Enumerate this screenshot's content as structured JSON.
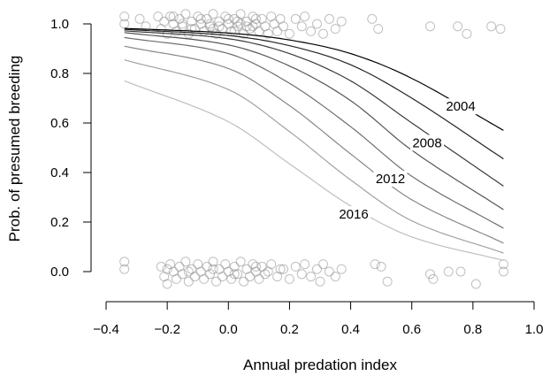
{
  "chart_data": {
    "type": "scatter",
    "xlabel": "Annual predation index",
    "ylabel": "Prob. of presumed breeding",
    "xlim": [
      -0.4,
      1.0
    ],
    "ylim": [
      -0.05,
      1.05
    ],
    "x_ticks": [
      "−0.4",
      "−0.2",
      "0.0",
      "0.2",
      "0.4",
      "0.6",
      "0.8",
      "1.0"
    ],
    "y_ticks": [
      "0.0",
      "0.2",
      "0.4",
      "0.6",
      "0.8",
      "1.0"
    ],
    "curve_range": [
      -0.34,
      0.9
    ],
    "curves": [
      {
        "name": "2004",
        "color": "#000000",
        "label_at": [
          0.76,
          0.667
        ],
        "points": [
          [
            -0.34,
            0.982
          ],
          [
            0.0,
            0.963
          ],
          [
            0.2,
            0.935
          ],
          [
            0.4,
            0.88
          ],
          [
            0.6,
            0.78
          ],
          [
            0.9,
            0.57
          ]
        ]
      },
      {
        "name": "",
        "color": "#222222",
        "points": [
          [
            -0.34,
            0.978
          ],
          [
            0.0,
            0.953
          ],
          [
            0.2,
            0.912
          ],
          [
            0.4,
            0.835
          ],
          [
            0.6,
            0.7
          ],
          [
            0.9,
            0.455
          ]
        ]
      },
      {
        "name": "2008",
        "color": "#3a3a3a",
        "label_at": [
          0.65,
          0.52
        ],
        "points": [
          [
            -0.34,
            0.972
          ],
          [
            0.0,
            0.94
          ],
          [
            0.2,
            0.88
          ],
          [
            0.4,
            0.77
          ],
          [
            0.6,
            0.6
          ],
          [
            0.9,
            0.345
          ]
        ]
      },
      {
        "name": "",
        "color": "#555555",
        "points": [
          [
            -0.34,
            0.965
          ],
          [
            0.0,
            0.915
          ],
          [
            0.2,
            0.83
          ],
          [
            0.4,
            0.69
          ],
          [
            0.6,
            0.49
          ],
          [
            0.9,
            0.25
          ]
        ]
      },
      {
        "name": "2012",
        "color": "#6e6e6e",
        "label_at": [
          0.53,
          0.375
        ],
        "points": [
          [
            -0.34,
            0.945
          ],
          [
            0.0,
            0.88
          ],
          [
            0.2,
            0.76
          ],
          [
            0.4,
            0.585
          ],
          [
            0.6,
            0.385
          ],
          [
            0.9,
            0.175
          ]
        ]
      },
      {
        "name": "",
        "color": "#888888",
        "points": [
          [
            -0.34,
            0.91
          ],
          [
            0.0,
            0.82
          ],
          [
            0.2,
            0.67
          ],
          [
            0.4,
            0.475
          ],
          [
            0.6,
            0.29
          ],
          [
            0.9,
            0.115
          ]
        ]
      },
      {
        "name": "",
        "color": "#a2a2a2",
        "points": [
          [
            -0.34,
            0.855
          ],
          [
            0.0,
            0.735
          ],
          [
            0.2,
            0.565
          ],
          [
            0.4,
            0.37
          ],
          [
            0.6,
            0.205
          ],
          [
            0.9,
            0.075
          ]
        ]
      },
      {
        "name": "2016",
        "color": "#bebebe",
        "label_at": [
          0.41,
          0.232
        ],
        "points": [
          [
            -0.34,
            0.77
          ],
          [
            0.0,
            0.605
          ],
          [
            0.2,
            0.435
          ],
          [
            0.4,
            0.265
          ],
          [
            0.6,
            0.14
          ],
          [
            0.9,
            0.045
          ]
        ]
      }
    ],
    "point_color": "#8c8c8c",
    "points_top": [
      [
        -0.34,
        1.03
      ],
      [
        -0.34,
        1.0
      ],
      [
        -0.29,
        1.02
      ],
      [
        -0.27,
        0.99
      ],
      [
        -0.23,
        1.03
      ],
      [
        -0.22,
        0.98
      ],
      [
        -0.21,
        1.01
      ],
      [
        -0.2,
        0.96
      ],
      [
        -0.19,
        1.03
      ],
      [
        -0.18,
        1.0
      ],
      [
        -0.17,
        0.97
      ],
      [
        -0.16,
        1.02
      ],
      [
        -0.15,
        0.99
      ],
      [
        -0.14,
        1.04
      ],
      [
        -0.13,
        0.96
      ],
      [
        -0.12,
        1.01
      ],
      [
        -0.11,
        0.98
      ],
      [
        -0.1,
        1.03
      ],
      [
        -0.09,
        1.0
      ],
      [
        -0.08,
        0.97
      ],
      [
        -0.07,
        1.02
      ],
      [
        -0.06,
        0.99
      ],
      [
        -0.05,
        1.04
      ],
      [
        -0.04,
        0.96
      ],
      [
        -0.03,
        1.01
      ],
      [
        -0.02,
        0.98
      ],
      [
        -0.01,
        1.03
      ],
      [
        0.0,
        1.0
      ],
      [
        0.01,
        0.97
      ],
      [
        0.02,
        1.02
      ],
      [
        0.03,
        0.99
      ],
      [
        0.04,
        1.04
      ],
      [
        0.05,
        0.96
      ],
      [
        0.06,
        1.01
      ],
      [
        0.07,
        0.98
      ],
      [
        0.08,
        1.03
      ],
      [
        0.09,
        1.0
      ],
      [
        0.1,
        0.97
      ],
      [
        0.11,
        1.02
      ],
      [
        0.12,
        0.99
      ],
      [
        0.13,
        0.96
      ],
      [
        0.14,
        1.03
      ],
      [
        0.15,
        1.0
      ],
      [
        0.16,
        0.97
      ],
      [
        0.17,
        1.02
      ],
      [
        0.18,
        0.99
      ],
      [
        0.2,
        0.96
      ],
      [
        0.22,
        1.02
      ],
      [
        0.24,
        0.99
      ],
      [
        0.25,
        1.03
      ],
      [
        0.27,
        0.97
      ],
      [
        0.29,
        1.0
      ],
      [
        0.31,
        0.96
      ],
      [
        0.33,
        1.02
      ],
      [
        0.35,
        0.98
      ],
      [
        0.37,
        1.01
      ],
      [
        -0.15,
        1.0
      ],
      [
        -0.12,
        0.98
      ],
      [
        -0.09,
        1.02
      ],
      [
        -0.06,
        1.0
      ],
      [
        -0.03,
        0.99
      ],
      [
        0.0,
        1.02
      ],
      [
        0.03,
        1.01
      ],
      [
        0.06,
        0.99
      ],
      [
        0.09,
        1.02
      ],
      [
        -0.18,
        1.03
      ],
      [
        -0.05,
        0.98
      ],
      [
        0.02,
        0.97
      ],
      [
        0.04,
        1.0
      ],
      [
        0.08,
        0.99
      ],
      [
        0.47,
        1.02
      ],
      [
        0.49,
        0.98
      ],
      [
        0.66,
        0.99
      ],
      [
        0.75,
        0.99
      ],
      [
        0.78,
        0.96
      ],
      [
        0.86,
        0.99
      ],
      [
        0.89,
        0.98
      ]
    ],
    "points_bottom": [
      [
        -0.34,
        0.04
      ],
      [
        -0.34,
        0.01
      ],
      [
        -0.22,
        0.02
      ],
      [
        -0.21,
        -0.02
      ],
      [
        -0.2,
        -0.05
      ],
      [
        -0.19,
        0.03
      ],
      [
        -0.18,
        0.0
      ],
      [
        -0.17,
        -0.03
      ],
      [
        -0.16,
        0.02
      ],
      [
        -0.15,
        -0.01
      ],
      [
        -0.14,
        0.04
      ],
      [
        -0.13,
        -0.04
      ],
      [
        -0.12,
        0.01
      ],
      [
        -0.11,
        -0.02
      ],
      [
        -0.1,
        0.03
      ],
      [
        -0.09,
        0.0
      ],
      [
        -0.08,
        -0.03
      ],
      [
        -0.07,
        0.02
      ],
      [
        -0.06,
        -0.01
      ],
      [
        -0.05,
        0.04
      ],
      [
        -0.04,
        -0.04
      ],
      [
        -0.03,
        0.01
      ],
      [
        -0.02,
        -0.02
      ],
      [
        -0.01,
        0.03
      ],
      [
        0.0,
        0.0
      ],
      [
        0.01,
        -0.03
      ],
      [
        0.02,
        0.02
      ],
      [
        0.03,
        -0.01
      ],
      [
        0.04,
        0.04
      ],
      [
        0.05,
        -0.04
      ],
      [
        0.06,
        0.01
      ],
      [
        0.07,
        -0.02
      ],
      [
        0.08,
        0.03
      ],
      [
        0.09,
        0.0
      ],
      [
        0.1,
        -0.03
      ],
      [
        0.11,
        0.02
      ],
      [
        0.12,
        -0.01
      ],
      [
        0.14,
        0.03
      ],
      [
        0.16,
        -0.02
      ],
      [
        0.18,
        0.01
      ],
      [
        0.2,
        -0.03
      ],
      [
        0.22,
        0.02
      ],
      [
        0.24,
        -0.01
      ],
      [
        0.25,
        0.03
      ],
      [
        0.27,
        -0.02
      ],
      [
        0.29,
        0.01
      ],
      [
        0.3,
        -0.04
      ],
      [
        0.31,
        0.03
      ],
      [
        0.33,
        0.0
      ],
      [
        0.35,
        -0.02
      ],
      [
        0.37,
        0.01
      ],
      [
        -0.2,
        0.01
      ],
      [
        -0.13,
        0.0
      ],
      [
        -0.05,
        0.01
      ],
      [
        0.02,
        -0.01
      ],
      [
        0.09,
        0.02
      ],
      [
        0.13,
        0.0
      ],
      [
        0.17,
        0.01
      ],
      [
        0.48,
        0.03
      ],
      [
        0.5,
        0.02
      ],
      [
        0.52,
        -0.04
      ],
      [
        0.66,
        -0.01
      ],
      [
        0.67,
        -0.03
      ],
      [
        0.72,
        0.0
      ],
      [
        0.76,
        0.0
      ],
      [
        0.81,
        -0.05
      ],
      [
        0.9,
        0.03
      ],
      [
        0.9,
        0.0
      ]
    ]
  }
}
